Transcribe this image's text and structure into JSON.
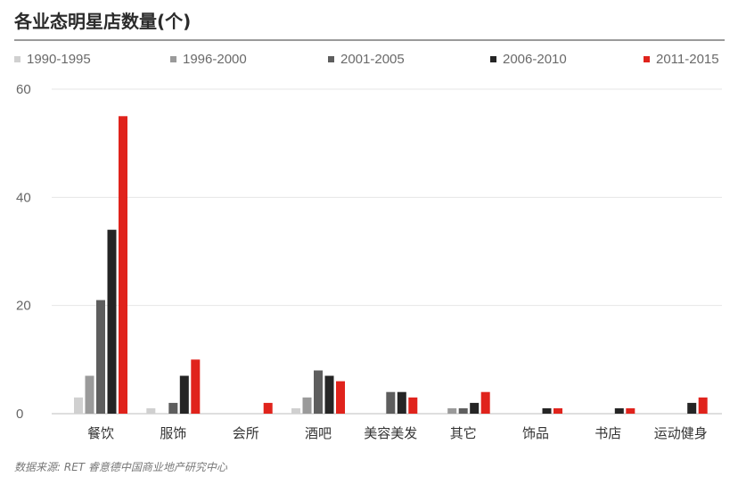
{
  "title": "各业态明星店数量(个)",
  "source": "数据来源: RET 睿意德中国商业地产研究中心",
  "chart_data": {
    "type": "bar",
    "categories": [
      "餐饮",
      "服饰",
      "会所",
      "酒吧",
      "美容美发",
      "其它",
      "饰品",
      "书店",
      "运动健身"
    ],
    "series": [
      {
        "name": "1990-1995",
        "color": "#d0d0d0",
        "values": [
          3,
          1,
          0,
          1,
          0,
          0,
          0,
          0,
          0
        ]
      },
      {
        "name": "1996-2000",
        "color": "#9a9a9a",
        "values": [
          7,
          0,
          0,
          3,
          0,
          1,
          0,
          0,
          0
        ]
      },
      {
        "name": "2001-2005",
        "color": "#5e5e5e",
        "values": [
          21,
          2,
          0,
          8,
          4,
          1,
          0,
          0,
          0
        ]
      },
      {
        "name": "2006-2010",
        "color": "#252525",
        "values": [
          34,
          7,
          0,
          7,
          4,
          2,
          1,
          1,
          2
        ]
      },
      {
        "name": "2011-2015",
        "color": "#e0231c",
        "values": [
          55,
          10,
          2,
          6,
          3,
          4,
          1,
          1,
          3
        ]
      }
    ],
    "y_ticks": [
      0,
      20,
      40,
      60
    ],
    "ylim": [
      0,
      60
    ],
    "grid": true,
    "legend_position": "top"
  }
}
